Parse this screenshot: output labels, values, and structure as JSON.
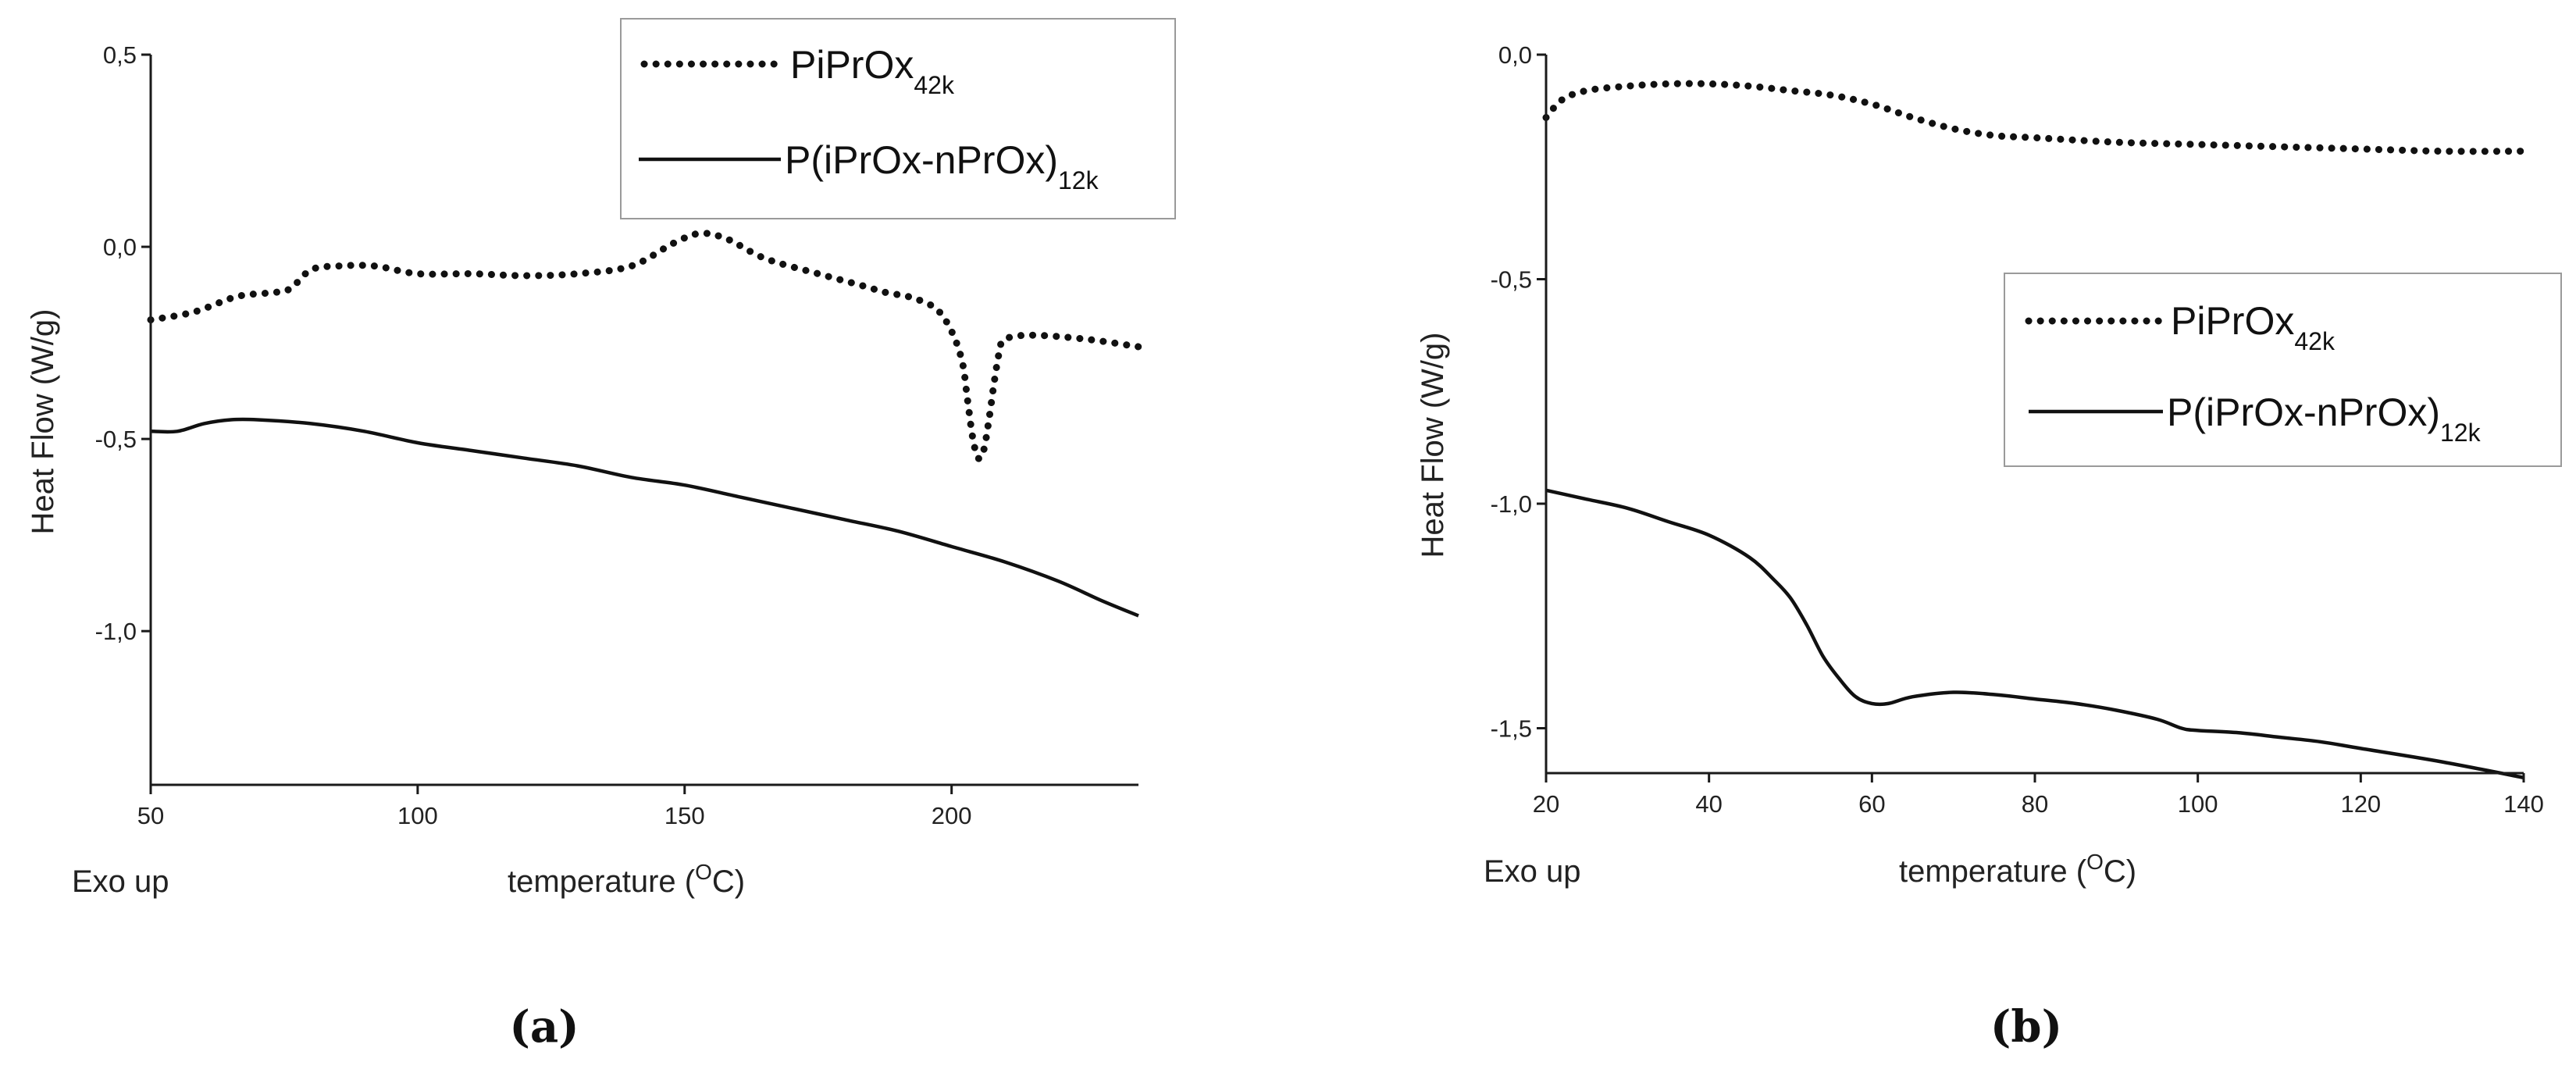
{
  "chart_data": [
    {
      "type": "line",
      "panel_label": "(a)",
      "xlabel": "temperature (",
      "xlabel_unit_sup": "O",
      "xlabel_unit": "C)",
      "ylabel": "Heat Flow (W/g)",
      "corner_note": "Exo up",
      "xlim": [
        50,
        235
      ],
      "ylim": [
        -1.4,
        0.5
      ],
      "xticks": [
        50,
        100,
        150,
        200
      ],
      "xtick_labels": [
        "50",
        "100",
        "150",
        "200"
      ],
      "yticks": [
        0.5,
        0.0,
        -0.5,
        -1.0
      ],
      "ytick_labels": [
        "0,5",
        "0,0",
        "-0,5",
        "-1,0"
      ],
      "legend_position": "top-right",
      "series": [
        {
          "name": "PiPrOx",
          "name_sub": "42k",
          "style": "dotted",
          "x": [
            50,
            58,
            66,
            72,
            76,
            80,
            85,
            92,
            100,
            110,
            120,
            130,
            140,
            148,
            153,
            158,
            165,
            175,
            183,
            188,
            192,
            197,
            200,
            202,
            203,
            204,
            205,
            206,
            207,
            208,
            209,
            210,
            215,
            225,
            235
          ],
          "y": [
            -0.19,
            -0.17,
            -0.13,
            -0.12,
            -0.11,
            -0.06,
            -0.05,
            -0.05,
            -0.07,
            -0.07,
            -0.075,
            -0.07,
            -0.05,
            0.01,
            0.035,
            0.02,
            -0.03,
            -0.07,
            -0.1,
            -0.12,
            -0.13,
            -0.16,
            -0.22,
            -0.3,
            -0.4,
            -0.5,
            -0.55,
            -0.53,
            -0.45,
            -0.35,
            -0.27,
            -0.24,
            -0.23,
            -0.24,
            -0.26
          ]
        },
        {
          "name": "P(iPrOx-nPrOx)",
          "name_sub": "12k",
          "style": "solid",
          "x": [
            50,
            55,
            60,
            65,
            70,
            80,
            90,
            100,
            110,
            120,
            130,
            140,
            150,
            160,
            170,
            180,
            190,
            200,
            210,
            220,
            228,
            235
          ],
          "y": [
            -0.48,
            -0.48,
            -0.46,
            -0.45,
            -0.45,
            -0.46,
            -0.48,
            -0.51,
            -0.53,
            -0.55,
            -0.57,
            -0.6,
            -0.62,
            -0.65,
            -0.68,
            -0.71,
            -0.74,
            -0.78,
            -0.82,
            -0.87,
            -0.92,
            -0.96
          ]
        }
      ]
    },
    {
      "type": "line",
      "panel_label": "(b)",
      "xlabel": "temperature (",
      "xlabel_unit_sup": "O",
      "xlabel_unit": "C)",
      "ylabel": "Heat Flow (W/g)",
      "corner_note": "Exo up",
      "xlim": [
        20,
        140
      ],
      "ylim": [
        -1.6,
        0.0
      ],
      "xticks": [
        20,
        40,
        60,
        80,
        100,
        120,
        140
      ],
      "xtick_labels": [
        "20",
        "40",
        "60",
        "80",
        "100",
        "120",
        "140"
      ],
      "yticks": [
        0.0,
        -0.5,
        -1.0,
        -1.5
      ],
      "ytick_labels": [
        "0,0",
        "-0,5",
        "-1,0",
        "-1,5"
      ],
      "legend_position": "center-right",
      "series": [
        {
          "name": "PiPrOx",
          "name_sub": "42k",
          "style": "dotted",
          "x": [
            20,
            22,
            25,
            30,
            35,
            40,
            45,
            50,
            55,
            60,
            65,
            70,
            75,
            80,
            90,
            100,
            110,
            120,
            130,
            140
          ],
          "y": [
            -0.14,
            -0.1,
            -0.08,
            -0.07,
            -0.065,
            -0.065,
            -0.07,
            -0.08,
            -0.09,
            -0.11,
            -0.14,
            -0.165,
            -0.18,
            -0.185,
            -0.195,
            -0.2,
            -0.205,
            -0.21,
            -0.215,
            -0.215
          ]
        },
        {
          "name": "P(iPrOx-nPrOx)",
          "name_sub": "12k",
          "style": "solid",
          "x": [
            20,
            25,
            30,
            35,
            40,
            45,
            48,
            50,
            52,
            54,
            56,
            58,
            60,
            62,
            65,
            70,
            75,
            80,
            85,
            90,
            95,
            98,
            100,
            105,
            110,
            115,
            120,
            130,
            140
          ],
          "y": [
            -0.97,
            -0.99,
            -1.01,
            -1.04,
            -1.07,
            -1.12,
            -1.17,
            -1.21,
            -1.27,
            -1.34,
            -1.39,
            -1.43,
            -1.445,
            -1.445,
            -1.43,
            -1.42,
            -1.425,
            -1.435,
            -1.445,
            -1.46,
            -1.48,
            -1.5,
            -1.505,
            -1.51,
            -1.52,
            -1.53,
            -1.545,
            -1.575,
            -1.61
          ]
        }
      ]
    }
  ]
}
